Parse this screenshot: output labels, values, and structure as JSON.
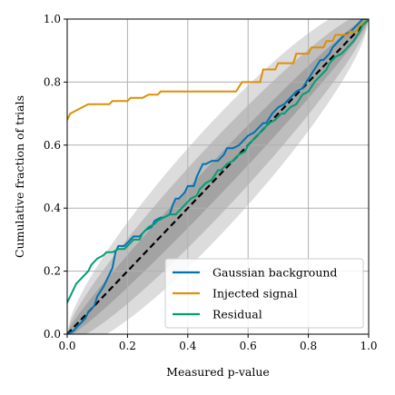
{
  "chart_data": {
    "type": "line",
    "title": "",
    "xlabel": "Measured p-value",
    "ylabel": "Cumulative fraction of trials",
    "xlim": [
      0,
      1
    ],
    "ylim": [
      0,
      1
    ],
    "grid": true,
    "legend_position": "bottom-right",
    "x_ticks": [
      "0.0",
      "0.2",
      "0.4",
      "0.6",
      "0.8",
      "1.0"
    ],
    "y_ticks": [
      "0.0",
      "0.2",
      "0.4",
      "0.6",
      "0.8",
      "1.0"
    ],
    "confidence_bands": [
      "#bfbfbf",
      "#a6a6a6",
      "#8c8c8c"
    ],
    "diagonal_color": "#000000",
    "series": [
      {
        "name": "Gaussian background",
        "color": "#0173b2",
        "x": [
          0.0,
          0.02,
          0.04,
          0.06,
          0.07,
          0.09,
          0.1,
          0.12,
          0.13,
          0.15,
          0.16,
          0.17,
          0.19,
          0.2,
          0.22,
          0.24,
          0.26,
          0.28,
          0.29,
          0.31,
          0.32,
          0.34,
          0.35,
          0.36,
          0.37,
          0.39,
          0.4,
          0.42,
          0.43,
          0.45,
          0.46,
          0.48,
          0.5,
          0.52,
          0.53,
          0.55,
          0.57,
          0.59,
          0.6,
          0.62,
          0.63,
          0.65,
          0.66,
          0.68,
          0.7,
          0.72,
          0.74,
          0.76,
          0.78,
          0.8,
          0.82,
          0.84,
          0.85,
          0.87,
          0.88,
          0.9,
          0.92,
          0.94,
          0.96,
          0.98,
          1.0
        ],
        "y": [
          0.0,
          0.01,
          0.03,
          0.05,
          0.07,
          0.09,
          0.12,
          0.15,
          0.17,
          0.21,
          0.26,
          0.28,
          0.28,
          0.29,
          0.31,
          0.31,
          0.33,
          0.34,
          0.36,
          0.37,
          0.37,
          0.38,
          0.41,
          0.43,
          0.43,
          0.45,
          0.47,
          0.47,
          0.5,
          0.54,
          0.54,
          0.55,
          0.55,
          0.57,
          0.59,
          0.59,
          0.6,
          0.62,
          0.63,
          0.64,
          0.65,
          0.67,
          0.67,
          0.7,
          0.72,
          0.73,
          0.75,
          0.77,
          0.78,
          0.81,
          0.84,
          0.87,
          0.87,
          0.89,
          0.91,
          0.93,
          0.95,
          0.96,
          0.98,
          1.0,
          1.0
        ]
      },
      {
        "name": "Injected signal",
        "color": "#de8f05",
        "x": [
          0.0,
          0.01,
          0.03,
          0.05,
          0.07,
          0.14,
          0.15,
          0.2,
          0.21,
          0.25,
          0.27,
          0.3,
          0.31,
          0.36,
          0.37,
          0.41,
          0.42,
          0.52,
          0.56,
          0.58,
          0.64,
          0.65,
          0.69,
          0.7,
          0.75,
          0.76,
          0.8,
          0.81,
          0.85,
          0.86,
          0.88,
          0.89,
          0.93,
          0.94,
          0.96,
          0.97,
          1.0
        ],
        "y": [
          0.68,
          0.7,
          0.71,
          0.72,
          0.73,
          0.73,
          0.74,
          0.74,
          0.75,
          0.75,
          0.76,
          0.76,
          0.77,
          0.77,
          0.77,
          0.77,
          0.77,
          0.77,
          0.77,
          0.8,
          0.8,
          0.84,
          0.84,
          0.86,
          0.86,
          0.89,
          0.89,
          0.91,
          0.91,
          0.93,
          0.93,
          0.95,
          0.95,
          0.96,
          0.96,
          0.98,
          1.0
        ]
      },
      {
        "name": "Residual",
        "color": "#029e73",
        "x": [
          0.0,
          0.01,
          0.03,
          0.05,
          0.07,
          0.08,
          0.1,
          0.12,
          0.13,
          0.15,
          0.17,
          0.19,
          0.2,
          0.22,
          0.24,
          0.25,
          0.27,
          0.29,
          0.3,
          0.32,
          0.34,
          0.36,
          0.37,
          0.39,
          0.41,
          0.43,
          0.44,
          0.46,
          0.48,
          0.5,
          0.51,
          0.53,
          0.55,
          0.57,
          0.59,
          0.6,
          0.62,
          0.64,
          0.65,
          0.67,
          0.69,
          0.71,
          0.72,
          0.74,
          0.76,
          0.78,
          0.8,
          0.82,
          0.84,
          0.86,
          0.87,
          0.89,
          0.91,
          0.93,
          0.95,
          0.97,
          0.98,
          1.0
        ],
        "y": [
          0.1,
          0.12,
          0.16,
          0.18,
          0.2,
          0.22,
          0.24,
          0.25,
          0.26,
          0.26,
          0.27,
          0.27,
          0.28,
          0.3,
          0.3,
          0.32,
          0.34,
          0.35,
          0.36,
          0.37,
          0.38,
          0.38,
          0.39,
          0.41,
          0.43,
          0.44,
          0.46,
          0.48,
          0.49,
          0.52,
          0.52,
          0.54,
          0.55,
          0.57,
          0.58,
          0.6,
          0.62,
          0.64,
          0.65,
          0.67,
          0.68,
          0.7,
          0.7,
          0.72,
          0.73,
          0.76,
          0.77,
          0.8,
          0.82,
          0.84,
          0.86,
          0.88,
          0.89,
          0.91,
          0.93,
          0.96,
          0.98,
          1.0
        ]
      }
    ]
  }
}
